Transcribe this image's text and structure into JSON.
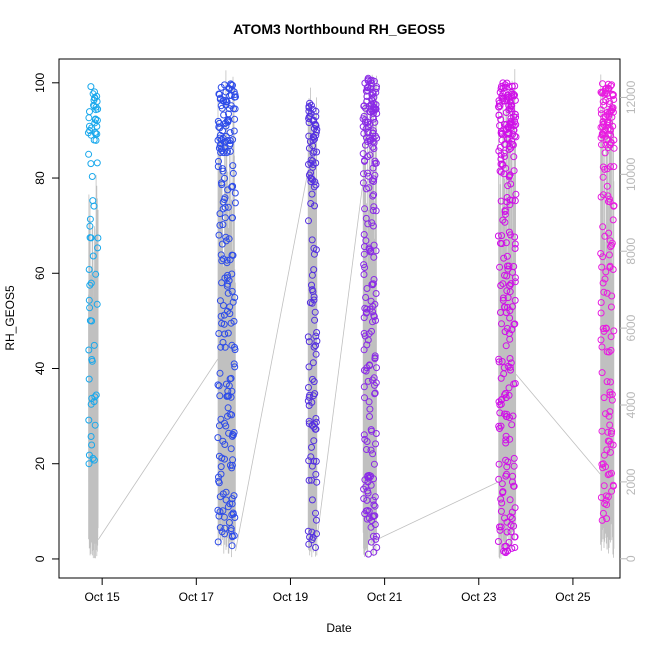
{
  "chart_data": {
    "type": "scatter",
    "title": "ATOM3 Northbound RH_GEOS5",
    "xlabel": "Date",
    "ylabel": "RH_GEOS5",
    "x_ticks": [
      "Oct 15",
      "Oct 17",
      "Oct 19",
      "Oct 21",
      "Oct 23",
      "Oct 25"
    ],
    "x_tick_dates": [
      "2017-10-15",
      "2017-10-17",
      "2017-10-19",
      "2017-10-21",
      "2017-10-23",
      "2017-10-25"
    ],
    "xlim": [
      "2017-10-14T02:00",
      "2017-10-26T00:00"
    ],
    "y_ticks": [
      0,
      20,
      40,
      60,
      80,
      100
    ],
    "ylim": [
      -4,
      105
    ],
    "y2_ticks": [
      0,
      2000,
      4000,
      6000,
      8000,
      10000,
      12000
    ],
    "y2lim": [
      -500,
      13000
    ],
    "grid": false,
    "colors": {
      "flight1": "#19a8ec",
      "flight2": "#2e4ce8",
      "flight3": "#5430e0",
      "flight4": "#8a2be6",
      "flight5": "#cf10e8",
      "flight6": "#e81ce0",
      "altitude_line": "#c0c0c0",
      "axes": "#000000",
      "right_axis": "#b8b8b8"
    },
    "series": [
      {
        "x_start": "2017-10-14T17:00",
        "x_end": "2017-10-14T22:00",
        "rh_min": 19,
        "rh_max": 101,
        "n": 70,
        "color_key": "flight1"
      },
      {
        "x_start": "2017-10-17T11:00",
        "x_end": "2017-10-17T20:00",
        "rh_min": 2,
        "rh_max": 100,
        "n": 220,
        "color_key": "flight2"
      },
      {
        "x_start": "2017-10-19T09:00",
        "x_end": "2017-10-19T13:30",
        "rh_min": 2,
        "rh_max": 96,
        "n": 120,
        "color_key": "flight3"
      },
      {
        "x_start": "2017-10-20T13:00",
        "x_end": "2017-10-20T20:00",
        "rh_min": 1,
        "rh_max": 101,
        "n": 220,
        "color_key": "flight4"
      },
      {
        "x_start": "2017-10-23T10:00",
        "x_end": "2017-10-23T19:00",
        "rh_min": 1,
        "rh_max": 100,
        "n": 260,
        "color_key": "flight5"
      },
      {
        "x_start": "2017-10-25T14:00",
        "x_end": "2017-10-25T21:00",
        "rh_min": 8,
        "rh_max": 100,
        "n": 170,
        "color_key": "flight6"
      }
    ],
    "altitude_segments": [
      {
        "x_start": "2017-10-14T17:00",
        "x_end": "2017-10-14T22:00",
        "alt_min": 0,
        "alt_max": 10000
      },
      {
        "x_start": "2017-10-17T11:00",
        "x_end": "2017-10-17T20:00",
        "alt_min": 0,
        "alt_max": 12800
      },
      {
        "x_start": "2017-10-19T09:00",
        "x_end": "2017-10-19T13:30",
        "alt_min": 0,
        "alt_max": 12800
      },
      {
        "x_start": "2017-10-20T13:00",
        "x_end": "2017-10-20T20:00",
        "alt_min": 0,
        "alt_max": 12800
      },
      {
        "x_start": "2017-10-23T10:00",
        "x_end": "2017-10-23T19:00",
        "alt_min": 0,
        "alt_max": 12800
      },
      {
        "x_start": "2017-10-25T14:00",
        "x_end": "2017-10-25T21:00",
        "alt_min": 0,
        "alt_max": 12800
      }
    ],
    "altitude_transits": [
      {
        "from": [
          "2017-10-14T22:00",
          500
        ],
        "to": [
          "2017-10-17T11:00",
          5200
        ]
      },
      {
        "from": [
          "2017-10-17T20:00",
          200
        ],
        "to": [
          "2017-10-19T09:00",
          10100
        ]
      },
      {
        "from": [
          "2017-10-19T13:30",
          500
        ],
        "to": [
          "2017-10-20T13:00",
          9800
        ]
      },
      {
        "from": [
          "2017-10-20T20:00",
          500
        ],
        "to": [
          "2017-10-23T10:00",
          2000
        ]
      },
      {
        "from": [
          "2017-10-23T19:00",
          4800
        ],
        "to": [
          "2017-10-25T14:00",
          2200
        ]
      }
    ]
  }
}
